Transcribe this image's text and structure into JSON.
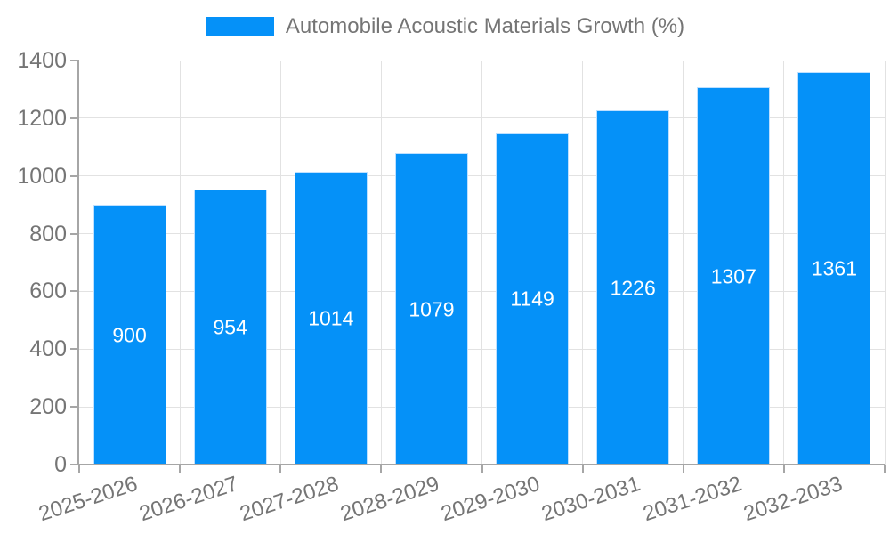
{
  "colors": {
    "bar": "#0591F8",
    "bar_border": "#BEE0FF",
    "text": "#757575",
    "grid": "#E2E2E2",
    "axis": "#A6A6A6",
    "bar_label": "#FFFFFF"
  },
  "legend": {
    "label": "Automobile Acoustic Materials Growth (%)"
  },
  "chart_data": {
    "type": "bar",
    "title": "Automobile Acoustic Materials Growth (%)",
    "categories": [
      "2025-2026",
      "2026-2027",
      "2027-2028",
      "2028-2029",
      "2029-2030",
      "2030-2031",
      "2031-2032",
      "2032-2033"
    ],
    "values": [
      900,
      954,
      1014,
      1079,
      1149,
      1226,
      1307,
      1361
    ],
    "series_name": "Automobile Acoustic Materials Growth (%)",
    "xlabel": "",
    "ylabel": "",
    "ylim": [
      0,
      1400
    ],
    "yticks": [
      0,
      200,
      400,
      600,
      800,
      1000,
      1200,
      1400
    ],
    "grid": true,
    "legend_position": "top",
    "bar_labels_shown": true
  }
}
